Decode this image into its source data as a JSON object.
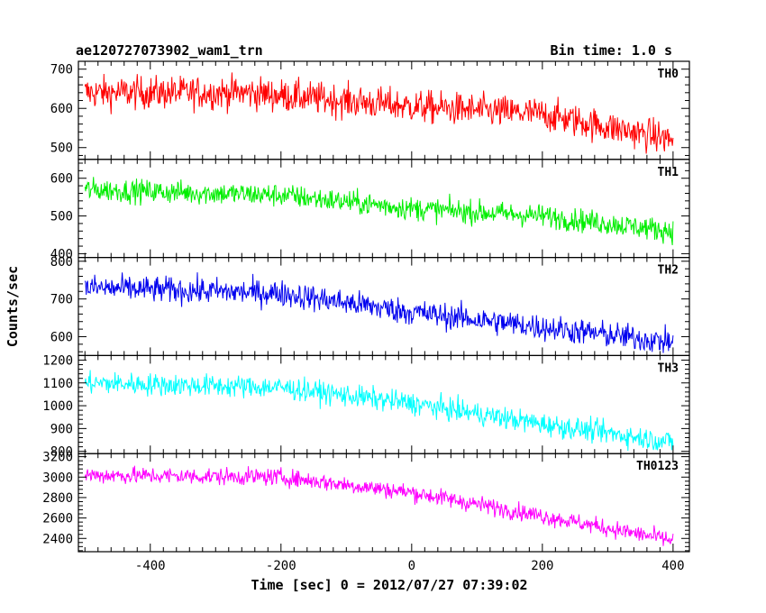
{
  "header": {
    "title": "ae120727073902_wam1_trn",
    "bin_time": "Bin time: 1.0 s"
  },
  "chart_data": {
    "type": "line",
    "xlabel": "Time [sec] 0 = 2012/07/27 07:39:02",
    "ylabel": "Counts/sec",
    "xlim": [
      -510,
      425
    ],
    "x_ticks": [
      -400,
      -200,
      0,
      200,
      400
    ],
    "x_range": [
      -500,
      400
    ],
    "panels": [
      {
        "name": "TH0",
        "color": "#ff0000",
        "ylim": [
          470,
          720
        ],
        "y_ticks": [
          500,
          600,
          700
        ],
        "trend": [
          [
            -500,
            640
          ],
          [
            -250,
            640
          ],
          [
            0,
            605
          ],
          [
            200,
            585
          ],
          [
            400,
            520
          ]
        ],
        "noise": 30
      },
      {
        "name": "TH1",
        "color": "#00ee00",
        "ylim": [
          390,
          650
        ],
        "y_ticks": [
          400,
          500,
          600
        ],
        "trend": [
          [
            -500,
            570
          ],
          [
            -200,
            555
          ],
          [
            0,
            520
          ],
          [
            200,
            500
          ],
          [
            400,
            460
          ]
        ],
        "noise": 22
      },
      {
        "name": "TH2",
        "color": "#0000ee",
        "ylim": [
          550,
          810
        ],
        "y_ticks": [
          600,
          700,
          800
        ],
        "trend": [
          [
            -500,
            730
          ],
          [
            -200,
            715
          ],
          [
            0,
            665
          ],
          [
            200,
            625
          ],
          [
            400,
            585
          ]
        ],
        "noise": 25
      },
      {
        "name": "TH3",
        "color": "#00ffff",
        "ylim": [
          790,
          1220
        ],
        "y_ticks": [
          800,
          900,
          1000,
          1100,
          1200
        ],
        "trend": [
          [
            -500,
            1100
          ],
          [
            -200,
            1080
          ],
          [
            0,
            1010
          ],
          [
            200,
            920
          ],
          [
            400,
            840
          ]
        ],
        "noise": 35
      },
      {
        "name": "TH0123",
        "color": "#ff00ff",
        "ylim": [
          2270,
          3230
        ],
        "y_ticks": [
          2400,
          2600,
          2800,
          3000,
          3200
        ],
        "trend": [
          [
            -500,
            3020
          ],
          [
            -200,
            3000
          ],
          [
            0,
            2850
          ],
          [
            200,
            2620
          ],
          [
            400,
            2380
          ]
        ],
        "noise": 60
      }
    ]
  }
}
